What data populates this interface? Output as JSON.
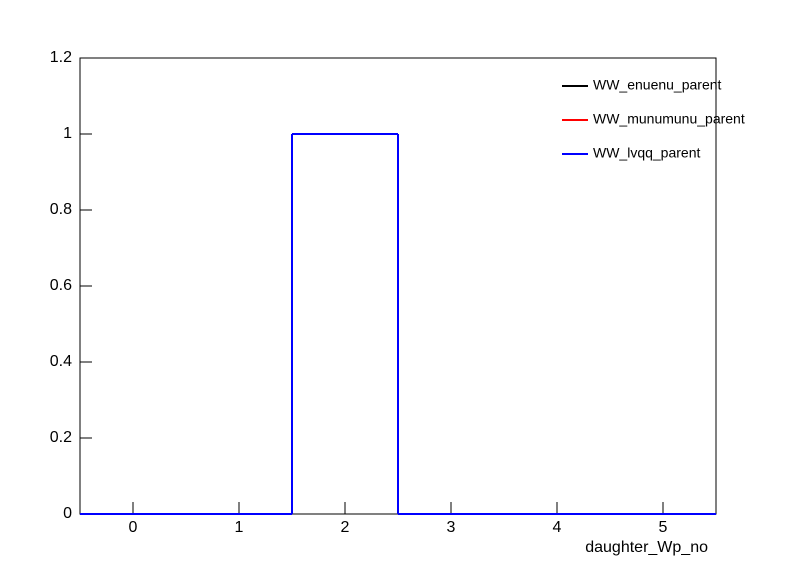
{
  "chart_data": {
    "type": "histogram",
    "xlabel": "daughter_Wp_no",
    "bins": [
      -0.5,
      0.5,
      1.5,
      2.5,
      3.5,
      4.5,
      5.5
    ],
    "series": [
      {
        "name": "WW_enuenu_parent",
        "color": "#000000",
        "values": [
          0,
          0,
          1,
          0,
          0,
          0
        ]
      },
      {
        "name": "WW_munumunu_parent",
        "color": "#ff0000",
        "values": [
          0,
          0,
          1,
          0,
          0,
          0
        ]
      },
      {
        "name": "WW_lvqq_parent",
        "color": "#0000ff",
        "values": [
          0,
          0,
          1,
          0,
          0,
          0
        ]
      }
    ],
    "xlim": [
      -0.5,
      5.5
    ],
    "xticks": [
      0,
      1,
      2,
      3,
      4,
      5
    ],
    "ylim": [
      0,
      1.2
    ],
    "yticks": [
      0,
      0.2,
      0.4,
      0.6,
      0.8,
      1,
      1.2
    ],
    "legend": "upper right"
  }
}
